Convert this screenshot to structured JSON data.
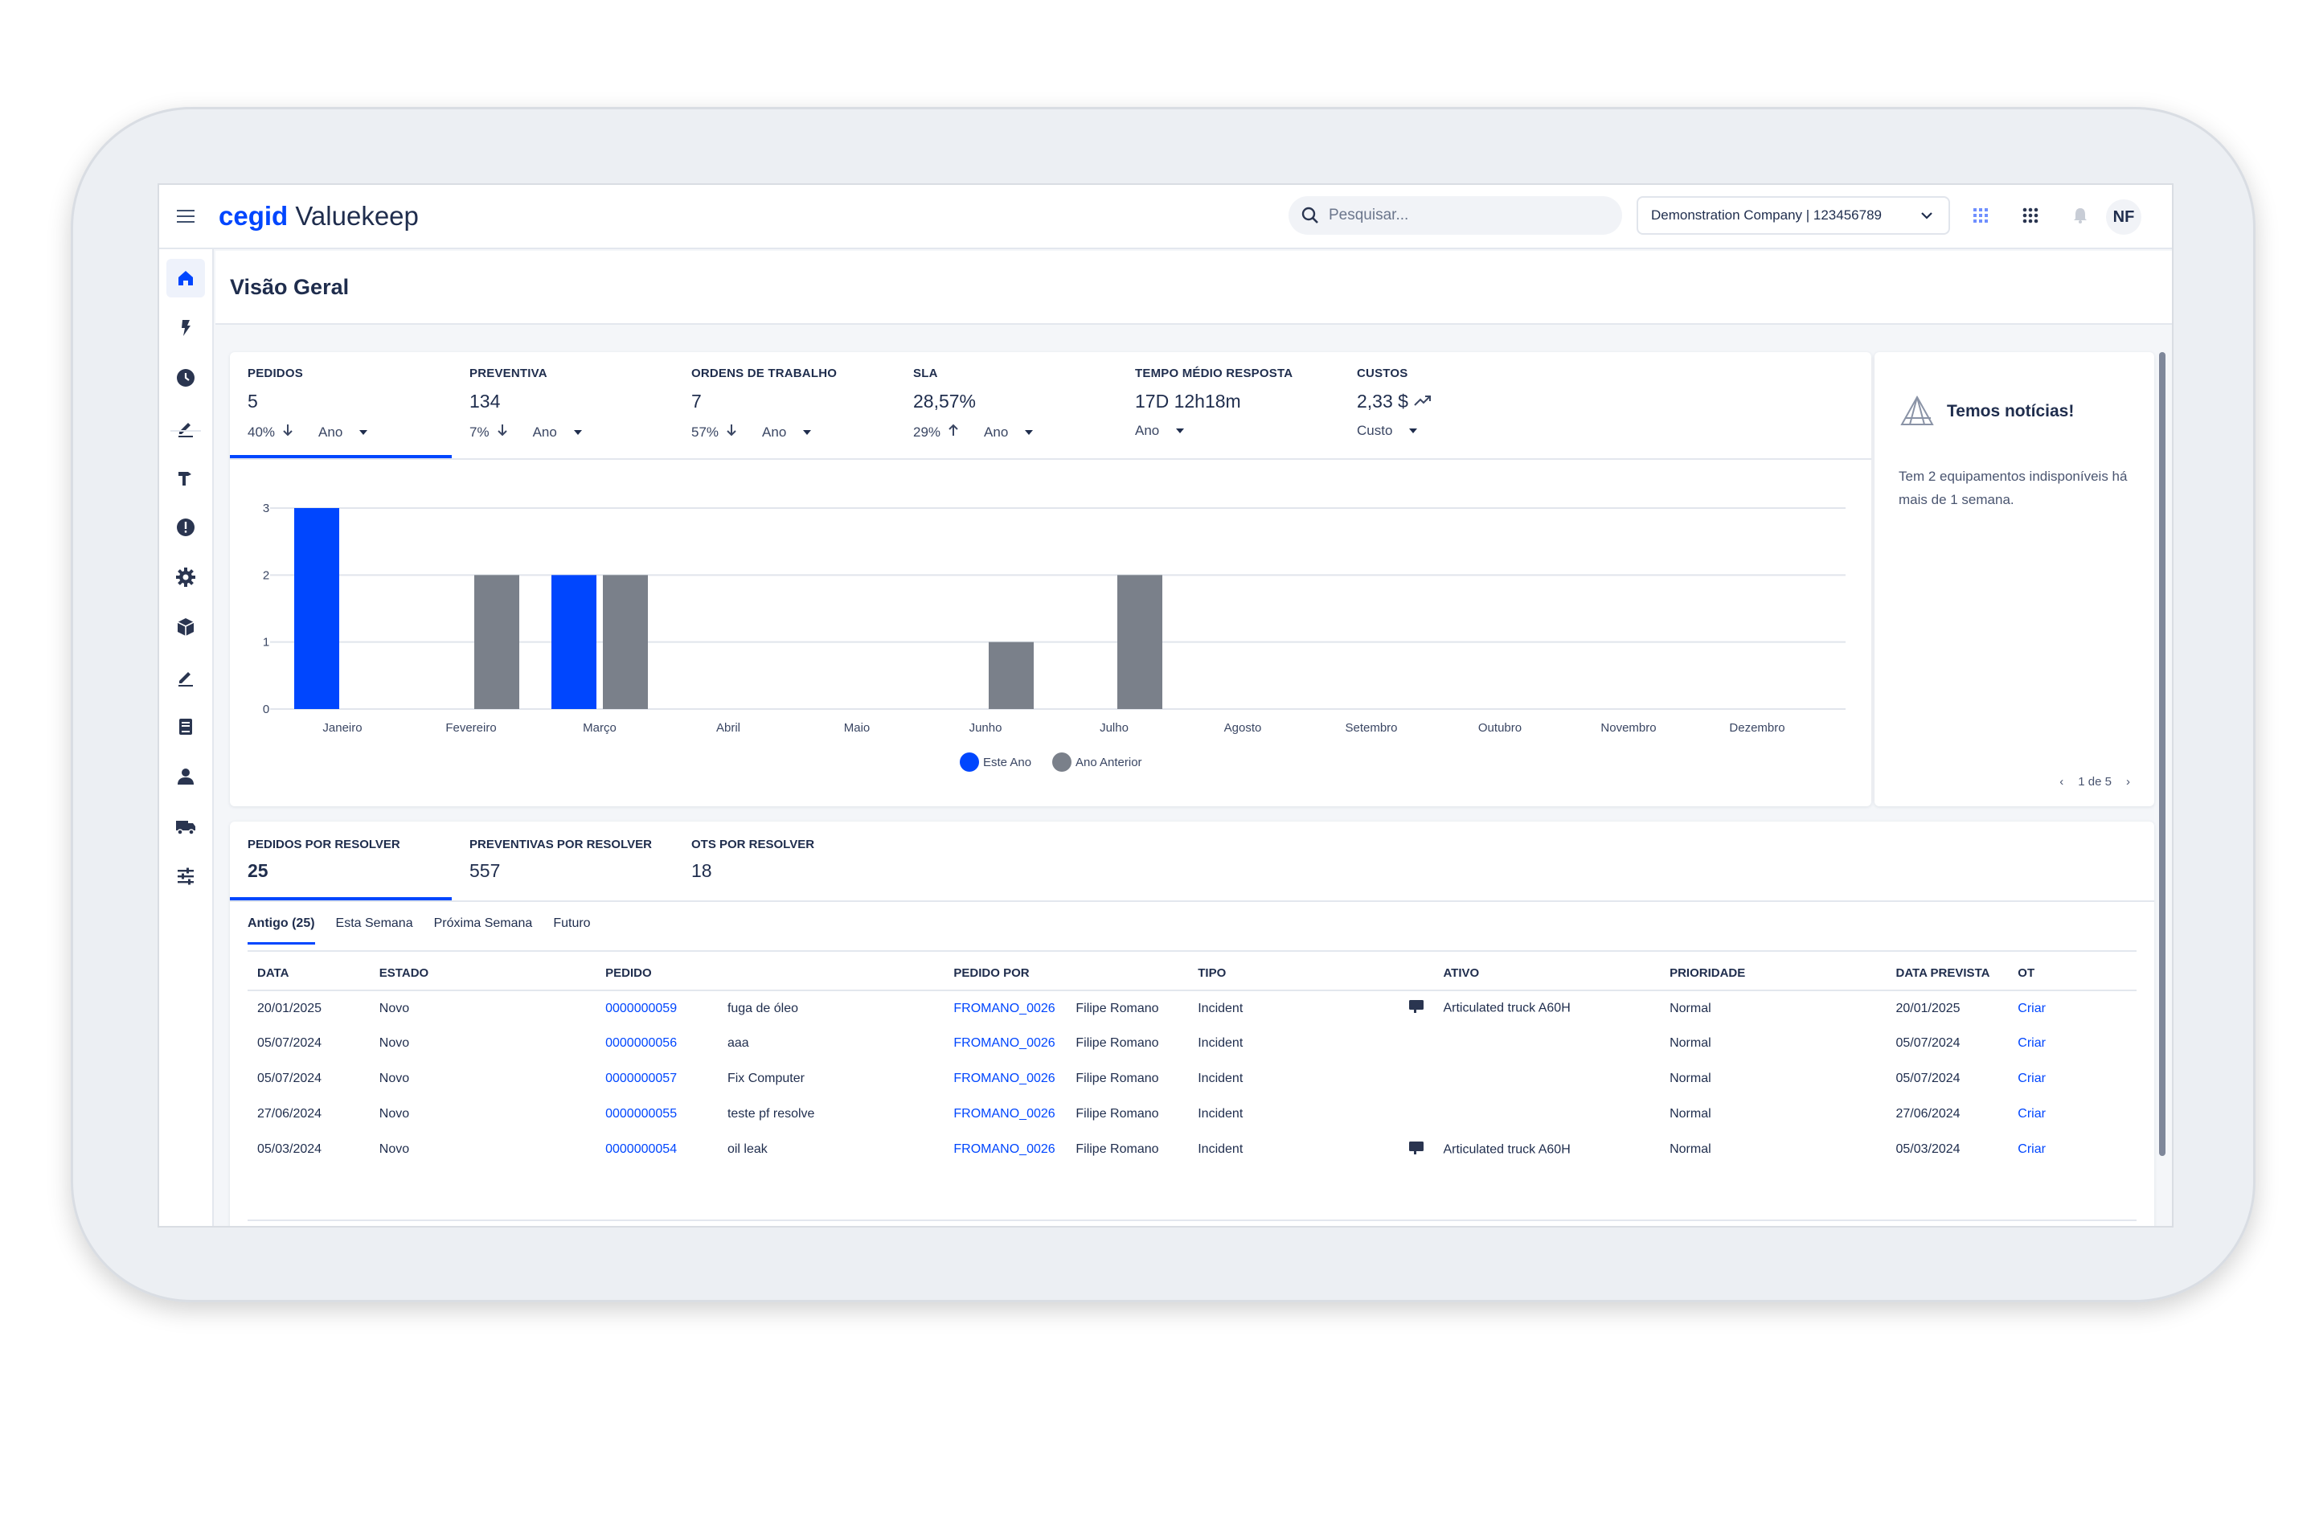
{
  "app": {
    "brand_bold": "cegid",
    "brand_name": "Valuekeep"
  },
  "header": {
    "search_placeholder": "Pesquisar...",
    "company": "Demonstration Company | 123456789",
    "avatar": "NF"
  },
  "sidebar": {
    "items": [
      {
        "name": "home",
        "icon": "home-icon",
        "active": true
      },
      {
        "name": "requests",
        "icon": "bolt-icon"
      },
      {
        "name": "preventive",
        "icon": "clock-icon"
      },
      {
        "name": "work-orders",
        "icon": "pencil-icon"
      },
      {
        "name": "tools",
        "icon": "hammer-icon"
      },
      {
        "name": "alerts",
        "icon": "alert-icon"
      },
      {
        "name": "settings",
        "icon": "gear-icon"
      },
      {
        "name": "inventory",
        "icon": "box-icon"
      },
      {
        "name": "edit",
        "icon": "edit-icon"
      },
      {
        "name": "documents",
        "icon": "book-icon"
      },
      {
        "name": "users",
        "icon": "person-icon"
      },
      {
        "name": "vehicles",
        "icon": "truck-icon"
      },
      {
        "name": "config",
        "icon": "sliders-icon"
      }
    ]
  },
  "page": {
    "title": "Visão Geral"
  },
  "kpis": [
    {
      "label": "PEDIDOS",
      "value": "5",
      "pct": "40%",
      "trend": "down",
      "period": "Ano",
      "active": true
    },
    {
      "label": "PREVENTIVA",
      "value": "134",
      "pct": "7%",
      "trend": "down",
      "period": "Ano"
    },
    {
      "label": "ORDENS DE TRABALHO",
      "value": "7",
      "pct": "57%",
      "trend": "down",
      "period": "Ano"
    },
    {
      "label": "SLA",
      "value": "28,57%",
      "pct": "29%",
      "trend": "up",
      "period": "Ano"
    },
    {
      "label": "TEMPO MÉDIO RESPOSTA",
      "value": "17D 12h18m",
      "pct": "",
      "trend": "",
      "period": "Ano"
    },
    {
      "label": "CUSTOS",
      "value": "2,33 $",
      "pct": "",
      "trend": "chart",
      "period": "Custo"
    }
  ],
  "chart_data": {
    "type": "bar",
    "categories": [
      "Janeiro",
      "Fevereiro",
      "Março",
      "Abril",
      "Maio",
      "Junho",
      "Julho",
      "Agosto",
      "Setembro",
      "Outubro",
      "Novembro",
      "Dezembro"
    ],
    "series": [
      {
        "name": "Este Ano",
        "color": "#0046fe",
        "values": [
          3,
          0,
          2,
          0,
          0,
          0,
          0,
          0,
          0,
          0,
          0,
          0
        ]
      },
      {
        "name": "Ano Anterior",
        "color": "#7a808a",
        "values": [
          0,
          2,
          2,
          0,
          0,
          1,
          2,
          0,
          0,
          0,
          0,
          0
        ]
      }
    ],
    "yticks": [
      0,
      1,
      2,
      3
    ],
    "ylim": [
      0,
      3
    ],
    "grid": true,
    "legend": "bottom"
  },
  "news": {
    "title": "Temos notícias!",
    "text": "Tem 2 equipamentos indisponíveis há mais de 1 semana.",
    "pager": "1 de 5"
  },
  "pending": {
    "tabs": [
      {
        "label": "PEDIDOS POR RESOLVER",
        "value": "25",
        "active": true
      },
      {
        "label": "PREVENTIVAS POR RESOLVER",
        "value": "557"
      },
      {
        "label": "OTS POR RESOLVER",
        "value": "18"
      }
    ],
    "subtabs": [
      "Antigo (25)",
      "Esta Semana",
      "Próxima Semana",
      "Futuro"
    ],
    "columns": [
      "DATA",
      "ESTADO",
      "PEDIDO",
      "",
      "PEDIDO POR",
      "",
      "TIPO",
      "ATIVO",
      "PRIORIDADE",
      "DATA PREVISTA",
      "OT"
    ],
    "rows": [
      {
        "data": "20/01/2025",
        "estado": "Novo",
        "pedido": "0000000059",
        "desc": "fuga de óleo",
        "por_code": "FROMANO_0026",
        "por_name": "Filipe Romano",
        "tipo": "Incident",
        "ativo": "Articulated truck A60H",
        "prioridade": "Normal",
        "prevista": "20/01/2025",
        "ot": "Criar"
      },
      {
        "data": "05/07/2024",
        "estado": "Novo",
        "pedido": "0000000056",
        "desc": "aaa",
        "por_code": "FROMANO_0026",
        "por_name": "Filipe Romano",
        "tipo": "Incident",
        "ativo": "",
        "prioridade": "Normal",
        "prevista": "05/07/2024",
        "ot": "Criar"
      },
      {
        "data": "05/07/2024",
        "estado": "Novo",
        "pedido": "0000000057",
        "desc": "Fix Computer",
        "por_code": "FROMANO_0026",
        "por_name": "Filipe Romano",
        "tipo": "Incident",
        "ativo": "",
        "prioridade": "Normal",
        "prevista": "05/07/2024",
        "ot": "Criar"
      },
      {
        "data": "27/06/2024",
        "estado": "Novo",
        "pedido": "0000000055",
        "desc": "teste pf resolve",
        "por_code": "FROMANO_0026",
        "por_name": "Filipe Romano",
        "tipo": "Incident",
        "ativo": "",
        "prioridade": "Normal",
        "prevista": "27/06/2024",
        "ot": "Criar"
      },
      {
        "data": "05/03/2024",
        "estado": "Novo",
        "pedido": "0000000054",
        "desc": "oil leak",
        "por_code": "FROMANO_0026",
        "por_name": "Filipe Romano",
        "tipo": "Incident",
        "ativo": "Articulated truck A60H",
        "prioridade": "Normal",
        "prevista": "05/03/2024",
        "ot": "Criar"
      }
    ]
  },
  "colors": {
    "accent": "#0046fe",
    "previous": "#7a808a",
    "text": "#1f2d4d"
  }
}
